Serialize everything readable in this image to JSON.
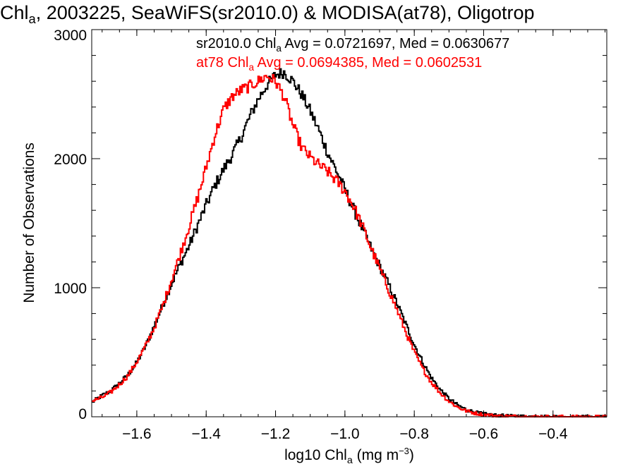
{
  "chart_data": {
    "type": "line",
    "title": {
      "pre": "Chl",
      "sub": "a",
      "post": ", 2003225, SeaWiFS(sr2010.0) & MODISA(at78), Oligotrop"
    },
    "xlabel": {
      "pre": "log10 Chl",
      "sub": "a",
      "mid": " (mg m",
      "sup": "−3",
      "post": ")"
    },
    "ylabel": "Number of Observations",
    "xlim": [
      -1.73,
      -0.245
    ],
    "ylim": [
      0,
      3000
    ],
    "xticks": [
      -1.6,
      -1.4,
      -1.2,
      -1.0,
      -0.8,
      -0.6,
      -0.4
    ],
    "xtick_labels": [
      "−1.6",
      "−1.4",
      "−1.2",
      "−1.0",
      "−0.8",
      "−0.6",
      "−0.4"
    ],
    "yticks": [
      0,
      1000,
      2000,
      3000
    ],
    "ytick_labels": [
      "0",
      "1000",
      "2000",
      "3000"
    ],
    "step": true,
    "grid": false,
    "legend_position": "top",
    "series": [
      {
        "legend": {
          "pre": "sr2010.0 Chl",
          "sub": "a",
          "post": " Avg = 0.0721697, Med = 0.0630677"
        },
        "color": "#000000",
        "points": [
          [
            -1.73,
            110
          ],
          [
            -1.7,
            165
          ],
          [
            -1.675,
            200
          ],
          [
            -1.65,
            260
          ],
          [
            -1.625,
            325
          ],
          [
            -1.6,
            420
          ],
          [
            -1.575,
            545
          ],
          [
            -1.55,
            700
          ],
          [
            -1.525,
            865
          ],
          [
            -1.5,
            1030
          ],
          [
            -1.475,
            1180
          ],
          [
            -1.45,
            1320
          ],
          [
            -1.425,
            1480
          ],
          [
            -1.4,
            1640
          ],
          [
            -1.375,
            1790
          ],
          [
            -1.35,
            1915
          ],
          [
            -1.325,
            2030
          ],
          [
            -1.3,
            2160
          ],
          [
            -1.275,
            2320
          ],
          [
            -1.25,
            2460
          ],
          [
            -1.225,
            2570
          ],
          [
            -1.2,
            2650
          ],
          [
            -1.175,
            2670
          ],
          [
            -1.15,
            2600
          ],
          [
            -1.125,
            2500
          ],
          [
            -1.1,
            2370
          ],
          [
            -1.075,
            2220
          ],
          [
            -1.05,
            2050
          ],
          [
            -1.025,
            1910
          ],
          [
            -1.0,
            1760
          ],
          [
            -0.975,
            1610
          ],
          [
            -0.95,
            1460
          ],
          [
            -0.925,
            1310
          ],
          [
            -0.9,
            1170
          ],
          [
            -0.875,
            1030
          ],
          [
            -0.85,
            880
          ],
          [
            -0.825,
            720
          ],
          [
            -0.8,
            560
          ],
          [
            -0.775,
            420
          ],
          [
            -0.75,
            300
          ],
          [
            -0.725,
            210
          ],
          [
            -0.7,
            140
          ],
          [
            -0.675,
            90
          ],
          [
            -0.65,
            55
          ],
          [
            -0.625,
            35
          ],
          [
            -0.6,
            22
          ],
          [
            -0.575,
            14
          ],
          [
            -0.55,
            9
          ],
          [
            -0.525,
            6
          ],
          [
            -0.5,
            4
          ],
          [
            -0.45,
            2
          ],
          [
            -0.4,
            1
          ],
          [
            -0.3,
            0
          ],
          [
            -0.245,
            0
          ]
        ]
      },
      {
        "legend": {
          "pre": "at78 Chl",
          "sub": "a",
          "post": " Avg = 0.0694385, Med = 0.0602531"
        },
        "color": "#ff0000",
        "points": [
          [
            -1.73,
            120
          ],
          [
            -1.7,
            150
          ],
          [
            -1.675,
            190
          ],
          [
            -1.65,
            250
          ],
          [
            -1.625,
            320
          ],
          [
            -1.6,
            425
          ],
          [
            -1.575,
            545
          ],
          [
            -1.55,
            690
          ],
          [
            -1.525,
            860
          ],
          [
            -1.5,
            1060
          ],
          [
            -1.475,
            1260
          ],
          [
            -1.45,
            1470
          ],
          [
            -1.425,
            1690
          ],
          [
            -1.4,
            1930
          ],
          [
            -1.375,
            2180
          ],
          [
            -1.35,
            2380
          ],
          [
            -1.325,
            2480
          ],
          [
            -1.3,
            2530
          ],
          [
            -1.275,
            2560
          ],
          [
            -1.25,
            2600
          ],
          [
            -1.225,
            2640
          ],
          [
            -1.2,
            2600
          ],
          [
            -1.175,
            2480
          ],
          [
            -1.15,
            2260
          ],
          [
            -1.125,
            2090
          ],
          [
            -1.1,
            2010
          ],
          [
            -1.075,
            1950
          ],
          [
            -1.05,
            1900
          ],
          [
            -1.025,
            1830
          ],
          [
            -1.0,
            1750
          ],
          [
            -0.975,
            1630
          ],
          [
            -0.95,
            1480
          ],
          [
            -0.925,
            1310
          ],
          [
            -0.9,
            1150
          ],
          [
            -0.875,
            990
          ],
          [
            -0.85,
            830
          ],
          [
            -0.825,
            660
          ],
          [
            -0.8,
            500
          ],
          [
            -0.775,
            370
          ],
          [
            -0.75,
            265
          ],
          [
            -0.725,
            185
          ],
          [
            -0.7,
            120
          ],
          [
            -0.675,
            75
          ],
          [
            -0.65,
            45
          ],
          [
            -0.625,
            28
          ],
          [
            -0.6,
            17
          ],
          [
            -0.575,
            10
          ],
          [
            -0.55,
            6
          ],
          [
            -0.5,
            3
          ],
          [
            -0.45,
            1
          ],
          [
            -0.3,
            0
          ],
          [
            -0.245,
            0
          ]
        ]
      }
    ]
  }
}
